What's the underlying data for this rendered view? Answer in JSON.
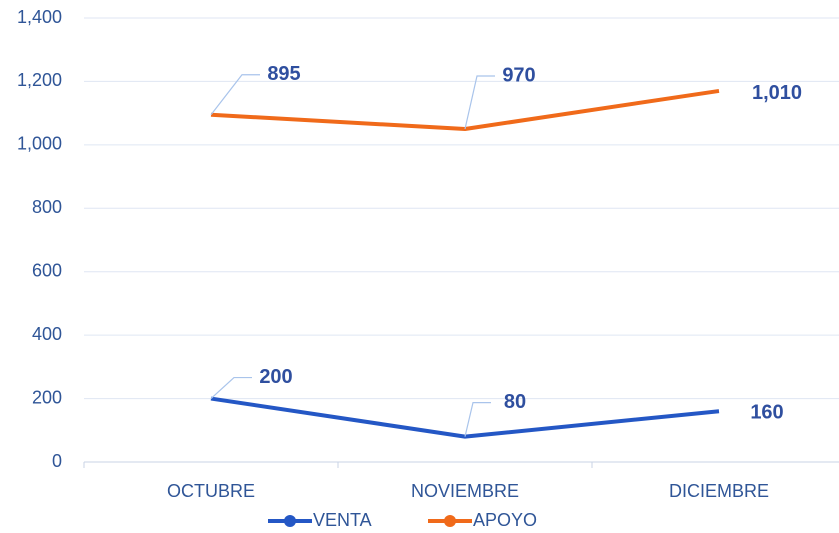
{
  "chart_data": {
    "type": "line",
    "stacked": true,
    "categories": [
      "OCTUBRE",
      "NOVIEMBRE",
      "DICIEMBRE"
    ],
    "series": [
      {
        "name": "VENTA",
        "color": "#2457c5",
        "values": [
          200,
          80,
          160
        ]
      },
      {
        "name": "APOYO",
        "color": "#f06a1a",
        "values": [
          895,
          970,
          1010
        ],
        "value_labels": [
          "895",
          "970",
          "1,010"
        ]
      }
    ],
    "ylim": [
      0,
      1400
    ],
    "yticks": [
      0,
      200,
      400,
      600,
      800,
      {
        "value": 1000,
        "label": "1,000"
      },
      {
        "value": 1200,
        "label": "1,200"
      },
      {
        "value": 1400,
        "label": "1,400"
      }
    ],
    "grid": true,
    "legend": "bottom"
  }
}
